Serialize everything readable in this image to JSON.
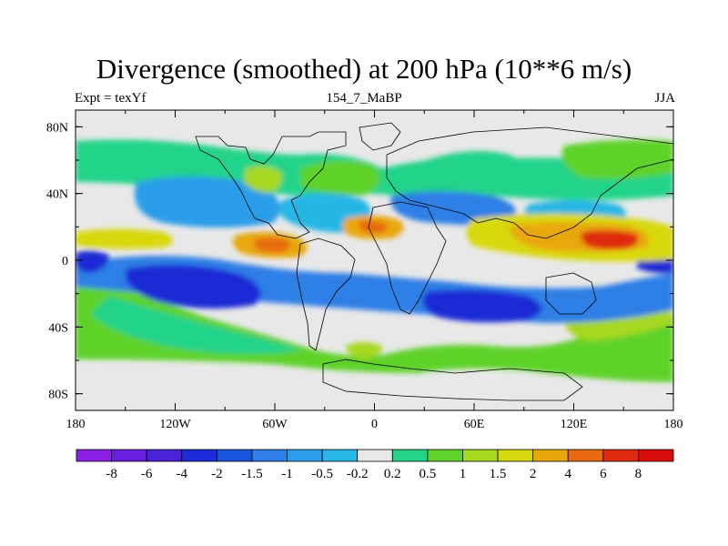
{
  "chart_data": {
    "type": "heatmap",
    "title": "Divergence (smoothed) at 200 hPa (10**6 m/s)",
    "left_label": "Expt = texYf",
    "center_label": "154_7_MaBP",
    "right_label": "JJA",
    "x_ticks": [
      "180",
      "120W",
      "60W",
      "0",
      "60E",
      "120E",
      "180"
    ],
    "y_ticks": [
      "80N",
      "40N",
      "0",
      "40S",
      "80S"
    ],
    "xlim": [
      -180,
      180
    ],
    "ylim": [
      -90,
      90
    ],
    "colorbar": {
      "levels": [
        "-8",
        "-6",
        "-4",
        "-2",
        "-1.5",
        "-1",
        "-0.5",
        "-0.2",
        "0.2",
        "0.5",
        "1",
        "1.5",
        "2",
        "4",
        "6",
        "8"
      ],
      "colors": [
        "#8c1fe6",
        "#6a1ee0",
        "#4a22d8",
        "#1e2bd6",
        "#1a55e0",
        "#2f7fe6",
        "#2c9de8",
        "#27b6e6",
        "#e8e8e8",
        "#23d38a",
        "#5fd22c",
        "#a6d820",
        "#d8d80e",
        "#e8a80c",
        "#e86a10",
        "#e02a10",
        "#d80a0a"
      ]
    },
    "notes": "Global map of smoothed 200 hPa divergence for JJA; values estimated from color shading"
  }
}
